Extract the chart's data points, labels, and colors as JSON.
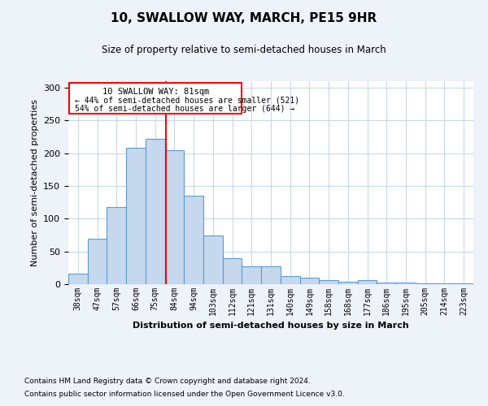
{
  "title": "10, SWALLOW WAY, MARCH, PE15 9HR",
  "subtitle": "Size of property relative to semi-detached houses in March",
  "xlabel": "Distribution of semi-detached houses by size in March",
  "ylabel": "Number of semi-detached properties",
  "categories": [
    "38sqm",
    "47sqm",
    "57sqm",
    "66sqm",
    "75sqm",
    "84sqm",
    "94sqm",
    "103sqm",
    "112sqm",
    "121sqm",
    "131sqm",
    "140sqm",
    "149sqm",
    "158sqm",
    "168sqm",
    "177sqm",
    "186sqm",
    "195sqm",
    "205sqm",
    "214sqm",
    "223sqm"
  ],
  "values": [
    16,
    70,
    118,
    208,
    222,
    205,
    135,
    75,
    40,
    27,
    27,
    13,
    10,
    6,
    4,
    6,
    3,
    3,
    1,
    1,
    1
  ],
  "bar_color": "#c5d8ed",
  "bar_edge_color": "#5b9bd5",
  "annotation_title": "10 SWALLOW WAY: 81sqm",
  "annotation_line1": "← 44% of semi-detached houses are smaller (521)",
  "annotation_line2": "54% of semi-detached houses are larger (644) →",
  "red_line_x": 4.55,
  "ylim": [
    0,
    310
  ],
  "footer_line1": "Contains HM Land Registry data © Crown copyright and database right 2024.",
  "footer_line2": "Contains public sector information licensed under the Open Government Licence v3.0.",
  "background_color": "#eef2f9",
  "plot_bg_color": "#ffffff",
  "grid_color": "#c8d8e8"
}
